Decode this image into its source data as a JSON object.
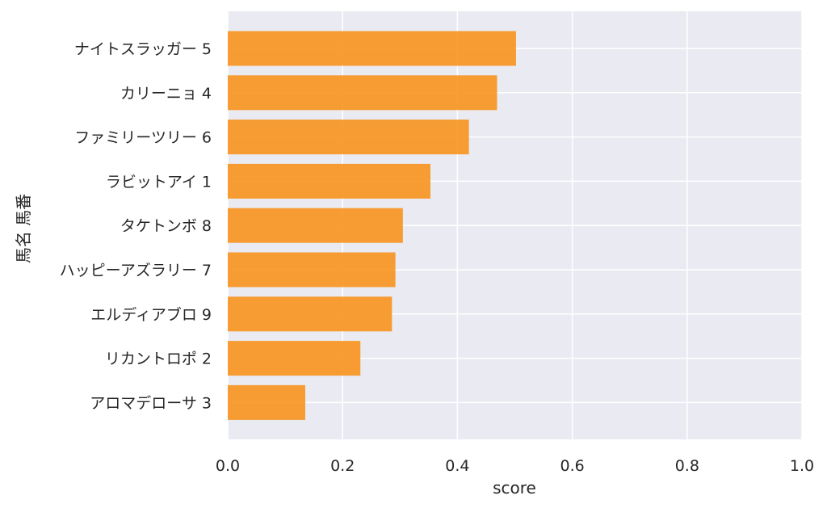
{
  "chart_data": {
    "type": "bar",
    "orientation": "horizontal",
    "title": "",
    "xlabel": "score",
    "ylabel": "馬名 馬番",
    "xlim": [
      0,
      1.0
    ],
    "xticks": [
      "0.0",
      "0.2",
      "0.4",
      "0.6",
      "0.8",
      "1.0"
    ],
    "grid": true,
    "legend": "none",
    "colors": {
      "bar": "#f7941d",
      "plot_bg": "#eaeaf2",
      "grid": "#ffffff",
      "text": "#262626"
    },
    "categories": [
      "ナイトスラッガー 5",
      "カリーニョ 4",
      "ファミリーツリー 6",
      "ラビットアイ 1",
      "タケトンボ 8",
      "ハッピーアズラリー 7",
      "エルディアブロ 9",
      "リカントロポ 2",
      "アロマデローサ 3"
    ],
    "values": [
      0.502,
      0.469,
      0.42,
      0.353,
      0.305,
      0.292,
      0.286,
      0.231,
      0.135
    ]
  }
}
